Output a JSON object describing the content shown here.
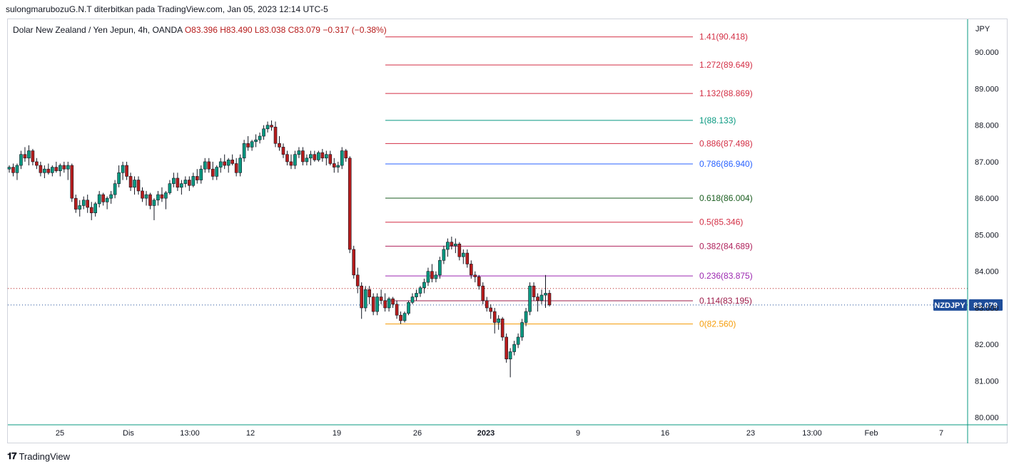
{
  "header": {
    "caption": "sulongmarubozuG.N.T diterbitkan pada TradingView.com, Jan 05, 2023 12:14 UTC-5",
    "symbol_desc": "Dolar New Zealand / Yen Jepun, 4h, OANDA",
    "ohlc": "O83.396  H83.490  L83.038  C83.079  −0.317 (−0.38%)"
  },
  "footer": {
    "brand": "TradingView",
    "logo_icon": "tradingview-logo-icon"
  },
  "chart_data": {
    "type": "candlestick",
    "y_axis": {
      "unit": "JPY",
      "ticks": [
        80.0,
        81.0,
        82.0,
        83.0,
        84.0,
        85.0,
        86.0,
        87.0,
        88.0,
        89.0,
        90.0
      ],
      "tick_labels": [
        "80.000",
        "81.000",
        "82.000",
        "83.000",
        "84.000",
        "85.000",
        "86.000",
        "87.000",
        "88.000",
        "89.000",
        "90.000"
      ],
      "ylim": [
        79.8,
        90.9
      ]
    },
    "x_axis": {
      "tick_labels": [
        "25",
        "Dis",
        "13:00",
        "12",
        "19",
        "26",
        "2023",
        "9",
        "16",
        "23",
        "13:00",
        "Feb",
        "7"
      ]
    },
    "last_price": {
      "symbol": "NZDJPY",
      "value": "83.079",
      "color": "#1e4d9a"
    },
    "previous_close_line": 83.53,
    "fibonacci": [
      {
        "ratio": "1.41",
        "value": 90.418,
        "label": "1.41(90.418)",
        "color": "#d32f45"
      },
      {
        "ratio": "1.272",
        "value": 89.649,
        "label": "1.272(89.649)",
        "color": "#d32f45"
      },
      {
        "ratio": "1.132",
        "value": 88.869,
        "label": "1.132(88.869)",
        "color": "#d32f45"
      },
      {
        "ratio": "1",
        "value": 88.133,
        "label": "1(88.133)",
        "color": "#089981"
      },
      {
        "ratio": "0.886",
        "value": 87.498,
        "label": "0.886(87.498)",
        "color": "#d32f45"
      },
      {
        "ratio": "0.786",
        "value": 86.94,
        "label": "0.786(86.940)",
        "color": "#2962ff"
      },
      {
        "ratio": "0.618",
        "value": 86.004,
        "label": "0.618(86.004)",
        "color": "#1b5e20"
      },
      {
        "ratio": "0.5",
        "value": 85.346,
        "label": "0.5(85.346)",
        "color": "#d32f45"
      },
      {
        "ratio": "0.382",
        "value": 84.689,
        "label": "0.382(84.689)",
        "color": "#b0235d"
      },
      {
        "ratio": "0.236",
        "value": 83.875,
        "label": "0.236(83.875)",
        "color": "#9c27b0"
      },
      {
        "ratio": "0.114",
        "value": 83.195,
        "label": "0.114(83.195)",
        "color": "#9c1c4a"
      },
      {
        "ratio": "0",
        "value": 82.56,
        "label": "0(82.560)",
        "color": "#f59d0b"
      }
    ],
    "colors": {
      "up": "#089981",
      "down": "#b71c1c",
      "wick": "#131722"
    },
    "candles": [
      [
        86.8,
        86.9,
        86.7,
        86.85
      ],
      [
        86.85,
        86.95,
        86.6,
        86.7
      ],
      [
        86.7,
        86.95,
        86.5,
        86.9
      ],
      [
        86.9,
        87.3,
        86.8,
        87.2
      ],
      [
        87.2,
        87.4,
        87.0,
        87.1
      ],
      [
        87.1,
        87.45,
        86.9,
        87.3
      ],
      [
        87.3,
        87.35,
        86.9,
        87.0
      ],
      [
        87.0,
        87.1,
        86.8,
        86.9
      ],
      [
        86.9,
        87.0,
        86.6,
        86.7
      ],
      [
        86.7,
        86.9,
        86.55,
        86.8
      ],
      [
        86.8,
        86.95,
        86.65,
        86.7
      ],
      [
        86.7,
        86.9,
        86.6,
        86.85
      ],
      [
        86.85,
        87.0,
        86.7,
        86.75
      ],
      [
        86.75,
        86.95,
        86.6,
        86.9
      ],
      [
        86.9,
        87.0,
        86.7,
        86.8
      ],
      [
        86.8,
        87.0,
        86.5,
        86.9
      ],
      [
        86.9,
        86.95,
        85.9,
        86.0
      ],
      [
        86.0,
        86.1,
        85.6,
        85.7
      ],
      [
        85.7,
        85.95,
        85.5,
        85.8
      ],
      [
        85.8,
        86.05,
        85.7,
        85.95
      ],
      [
        85.95,
        86.1,
        85.6,
        85.75
      ],
      [
        85.75,
        85.9,
        85.4,
        85.6
      ],
      [
        85.6,
        85.9,
        85.5,
        85.85
      ],
      [
        85.85,
        86.2,
        85.75,
        86.1
      ],
      [
        86.1,
        86.15,
        85.8,
        85.9
      ],
      [
        85.9,
        86.05,
        85.7,
        86.0
      ],
      [
        86.0,
        86.2,
        85.85,
        86.1
      ],
      [
        86.1,
        86.5,
        86.0,
        86.4
      ],
      [
        86.4,
        86.9,
        86.3,
        86.7
      ],
      [
        86.7,
        87.0,
        86.5,
        86.9
      ],
      [
        86.9,
        87.0,
        86.5,
        86.6
      ],
      [
        86.6,
        86.7,
        86.2,
        86.3
      ],
      [
        86.3,
        86.6,
        86.1,
        86.5
      ],
      [
        86.5,
        86.6,
        86.1,
        86.2
      ],
      [
        86.2,
        86.3,
        85.9,
        86.0
      ],
      [
        86.0,
        86.2,
        85.8,
        86.1
      ],
      [
        86.1,
        86.15,
        85.7,
        85.8
      ],
      [
        85.8,
        86.0,
        85.4,
        85.95
      ],
      [
        85.95,
        86.2,
        85.8,
        86.1
      ],
      [
        86.1,
        86.3,
        85.9,
        86.0
      ],
      [
        86.0,
        86.2,
        85.7,
        86.15
      ],
      [
        86.15,
        86.5,
        86.1,
        86.4
      ],
      [
        86.4,
        86.7,
        86.3,
        86.55
      ],
      [
        86.55,
        86.7,
        86.2,
        86.3
      ],
      [
        86.3,
        86.5,
        86.1,
        86.4
      ],
      [
        86.4,
        86.6,
        86.3,
        86.5
      ],
      [
        86.5,
        86.6,
        86.2,
        86.35
      ],
      [
        86.35,
        86.7,
        86.3,
        86.6
      ],
      [
        86.6,
        86.8,
        86.4,
        86.5
      ],
      [
        86.5,
        86.9,
        86.4,
        86.8
      ],
      [
        86.8,
        87.1,
        86.7,
        87.0
      ],
      [
        87.0,
        87.1,
        86.7,
        86.8
      ],
      [
        86.8,
        87.0,
        86.5,
        86.6
      ],
      [
        86.6,
        86.9,
        86.5,
        86.85
      ],
      [
        86.85,
        87.1,
        86.7,
        87.0
      ],
      [
        87.0,
        87.2,
        86.8,
        86.9
      ],
      [
        86.9,
        87.1,
        86.7,
        87.05
      ],
      [
        87.05,
        87.2,
        86.9,
        86.95
      ],
      [
        86.95,
        87.1,
        86.6,
        86.7
      ],
      [
        86.7,
        87.2,
        86.6,
        87.1
      ],
      [
        87.1,
        87.6,
        87.0,
        87.5
      ],
      [
        87.5,
        87.7,
        87.3,
        87.4
      ],
      [
        87.4,
        87.6,
        87.3,
        87.55
      ],
      [
        87.55,
        87.75,
        87.4,
        87.6
      ],
      [
        87.6,
        87.8,
        87.5,
        87.7
      ],
      [
        87.7,
        88.0,
        87.6,
        87.9
      ],
      [
        87.9,
        88.1,
        87.8,
        88.0
      ],
      [
        88.0,
        88.13,
        87.85,
        87.95
      ],
      [
        87.95,
        88.1,
        87.4,
        87.5
      ],
      [
        87.5,
        87.7,
        87.3,
        87.4
      ],
      [
        87.4,
        87.5,
        87.1,
        87.2
      ],
      [
        87.2,
        87.3,
        86.9,
        87.0
      ],
      [
        87.0,
        87.2,
        86.8,
        86.9
      ],
      [
        86.9,
        87.3,
        86.8,
        87.2
      ],
      [
        87.2,
        87.4,
        87.1,
        87.3
      ],
      [
        87.3,
        87.4,
        86.9,
        87.0
      ],
      [
        87.0,
        87.2,
        86.9,
        87.1
      ],
      [
        87.1,
        87.3,
        86.9,
        87.2
      ],
      [
        87.2,
        87.3,
        87.0,
        87.05
      ],
      [
        87.05,
        87.3,
        87.0,
        87.25
      ],
      [
        87.25,
        87.35,
        87.0,
        87.1
      ],
      [
        87.1,
        87.3,
        86.9,
        87.2
      ],
      [
        87.2,
        87.3,
        86.9,
        86.95
      ],
      [
        86.95,
        87.1,
        86.7,
        86.85
      ],
      [
        86.85,
        87.0,
        86.7,
        86.9
      ],
      [
        86.9,
        87.4,
        86.8,
        87.3
      ],
      [
        87.3,
        87.35,
        87.0,
        87.1
      ],
      [
        87.1,
        87.15,
        84.5,
        84.6
      ],
      [
        84.6,
        84.7,
        83.8,
        83.9
      ],
      [
        83.9,
        84.1,
        83.4,
        83.6
      ],
      [
        83.6,
        83.7,
        82.7,
        83.0
      ],
      [
        83.0,
        83.6,
        82.9,
        83.5
      ],
      [
        83.5,
        83.6,
        83.1,
        83.3
      ],
      [
        83.3,
        83.4,
        82.8,
        82.9
      ],
      [
        82.9,
        83.4,
        82.8,
        83.3
      ],
      [
        83.3,
        83.5,
        83.1,
        83.2
      ],
      [
        83.2,
        83.4,
        82.9,
        83.0
      ],
      [
        83.0,
        83.3,
        82.9,
        83.25
      ],
      [
        83.25,
        83.3,
        83.0,
        83.1
      ],
      [
        83.1,
        83.2,
        82.7,
        82.8
      ],
      [
        82.8,
        82.9,
        82.56,
        82.65
      ],
      [
        82.65,
        82.9,
        82.6,
        82.85
      ],
      [
        82.85,
        83.2,
        82.8,
        83.15
      ],
      [
        83.15,
        83.4,
        83.1,
        83.3
      ],
      [
        83.3,
        83.5,
        83.2,
        83.4
      ],
      [
        83.4,
        83.6,
        83.3,
        83.55
      ],
      [
        83.55,
        83.8,
        83.4,
        83.7
      ],
      [
        83.7,
        84.1,
        83.6,
        84.0
      ],
      [
        84.0,
        84.2,
        83.7,
        83.8
      ],
      [
        83.8,
        84.0,
        83.7,
        83.9
      ],
      [
        83.9,
        84.4,
        83.8,
        84.3
      ],
      [
        84.3,
        84.7,
        84.2,
        84.6
      ],
      [
        84.6,
        84.9,
        84.4,
        84.8
      ],
      [
        84.8,
        84.95,
        84.6,
        84.7
      ],
      [
        84.7,
        84.9,
        84.5,
        84.75
      ],
      [
        84.75,
        84.8,
        84.3,
        84.4
      ],
      [
        84.4,
        84.6,
        84.2,
        84.5
      ],
      [
        84.5,
        84.6,
        84.1,
        84.2
      ],
      [
        84.2,
        84.3,
        83.8,
        83.9
      ],
      [
        83.9,
        84.0,
        83.7,
        83.85
      ],
      [
        83.85,
        83.9,
        83.5,
        83.6
      ],
      [
        83.6,
        83.7,
        83.1,
        83.2
      ],
      [
        83.2,
        83.3,
        82.9,
        83.0
      ],
      [
        83.0,
        83.1,
        82.7,
        82.9
      ],
      [
        82.9,
        83.0,
        82.3,
        82.6
      ],
      [
        82.6,
        82.8,
        82.4,
        82.7
      ],
      [
        82.7,
        82.75,
        82.1,
        82.2
      ],
      [
        82.2,
        82.3,
        81.5,
        81.6
      ],
      [
        81.6,
        81.9,
        81.1,
        81.8
      ],
      [
        81.8,
        82.1,
        81.7,
        82.0
      ],
      [
        82.0,
        82.3,
        81.9,
        82.2
      ],
      [
        82.2,
        82.7,
        82.1,
        82.6
      ],
      [
        82.6,
        83.0,
        82.5,
        82.9
      ],
      [
        82.9,
        83.7,
        82.8,
        83.6
      ],
      [
        83.6,
        83.7,
        83.2,
        83.3
      ],
      [
        83.3,
        83.4,
        82.9,
        83.2
      ],
      [
        83.2,
        83.5,
        83.1,
        83.35
      ],
      [
        83.35,
        83.9,
        83.0,
        83.4
      ],
      [
        83.4,
        83.49,
        83.04,
        83.08
      ]
    ]
  }
}
